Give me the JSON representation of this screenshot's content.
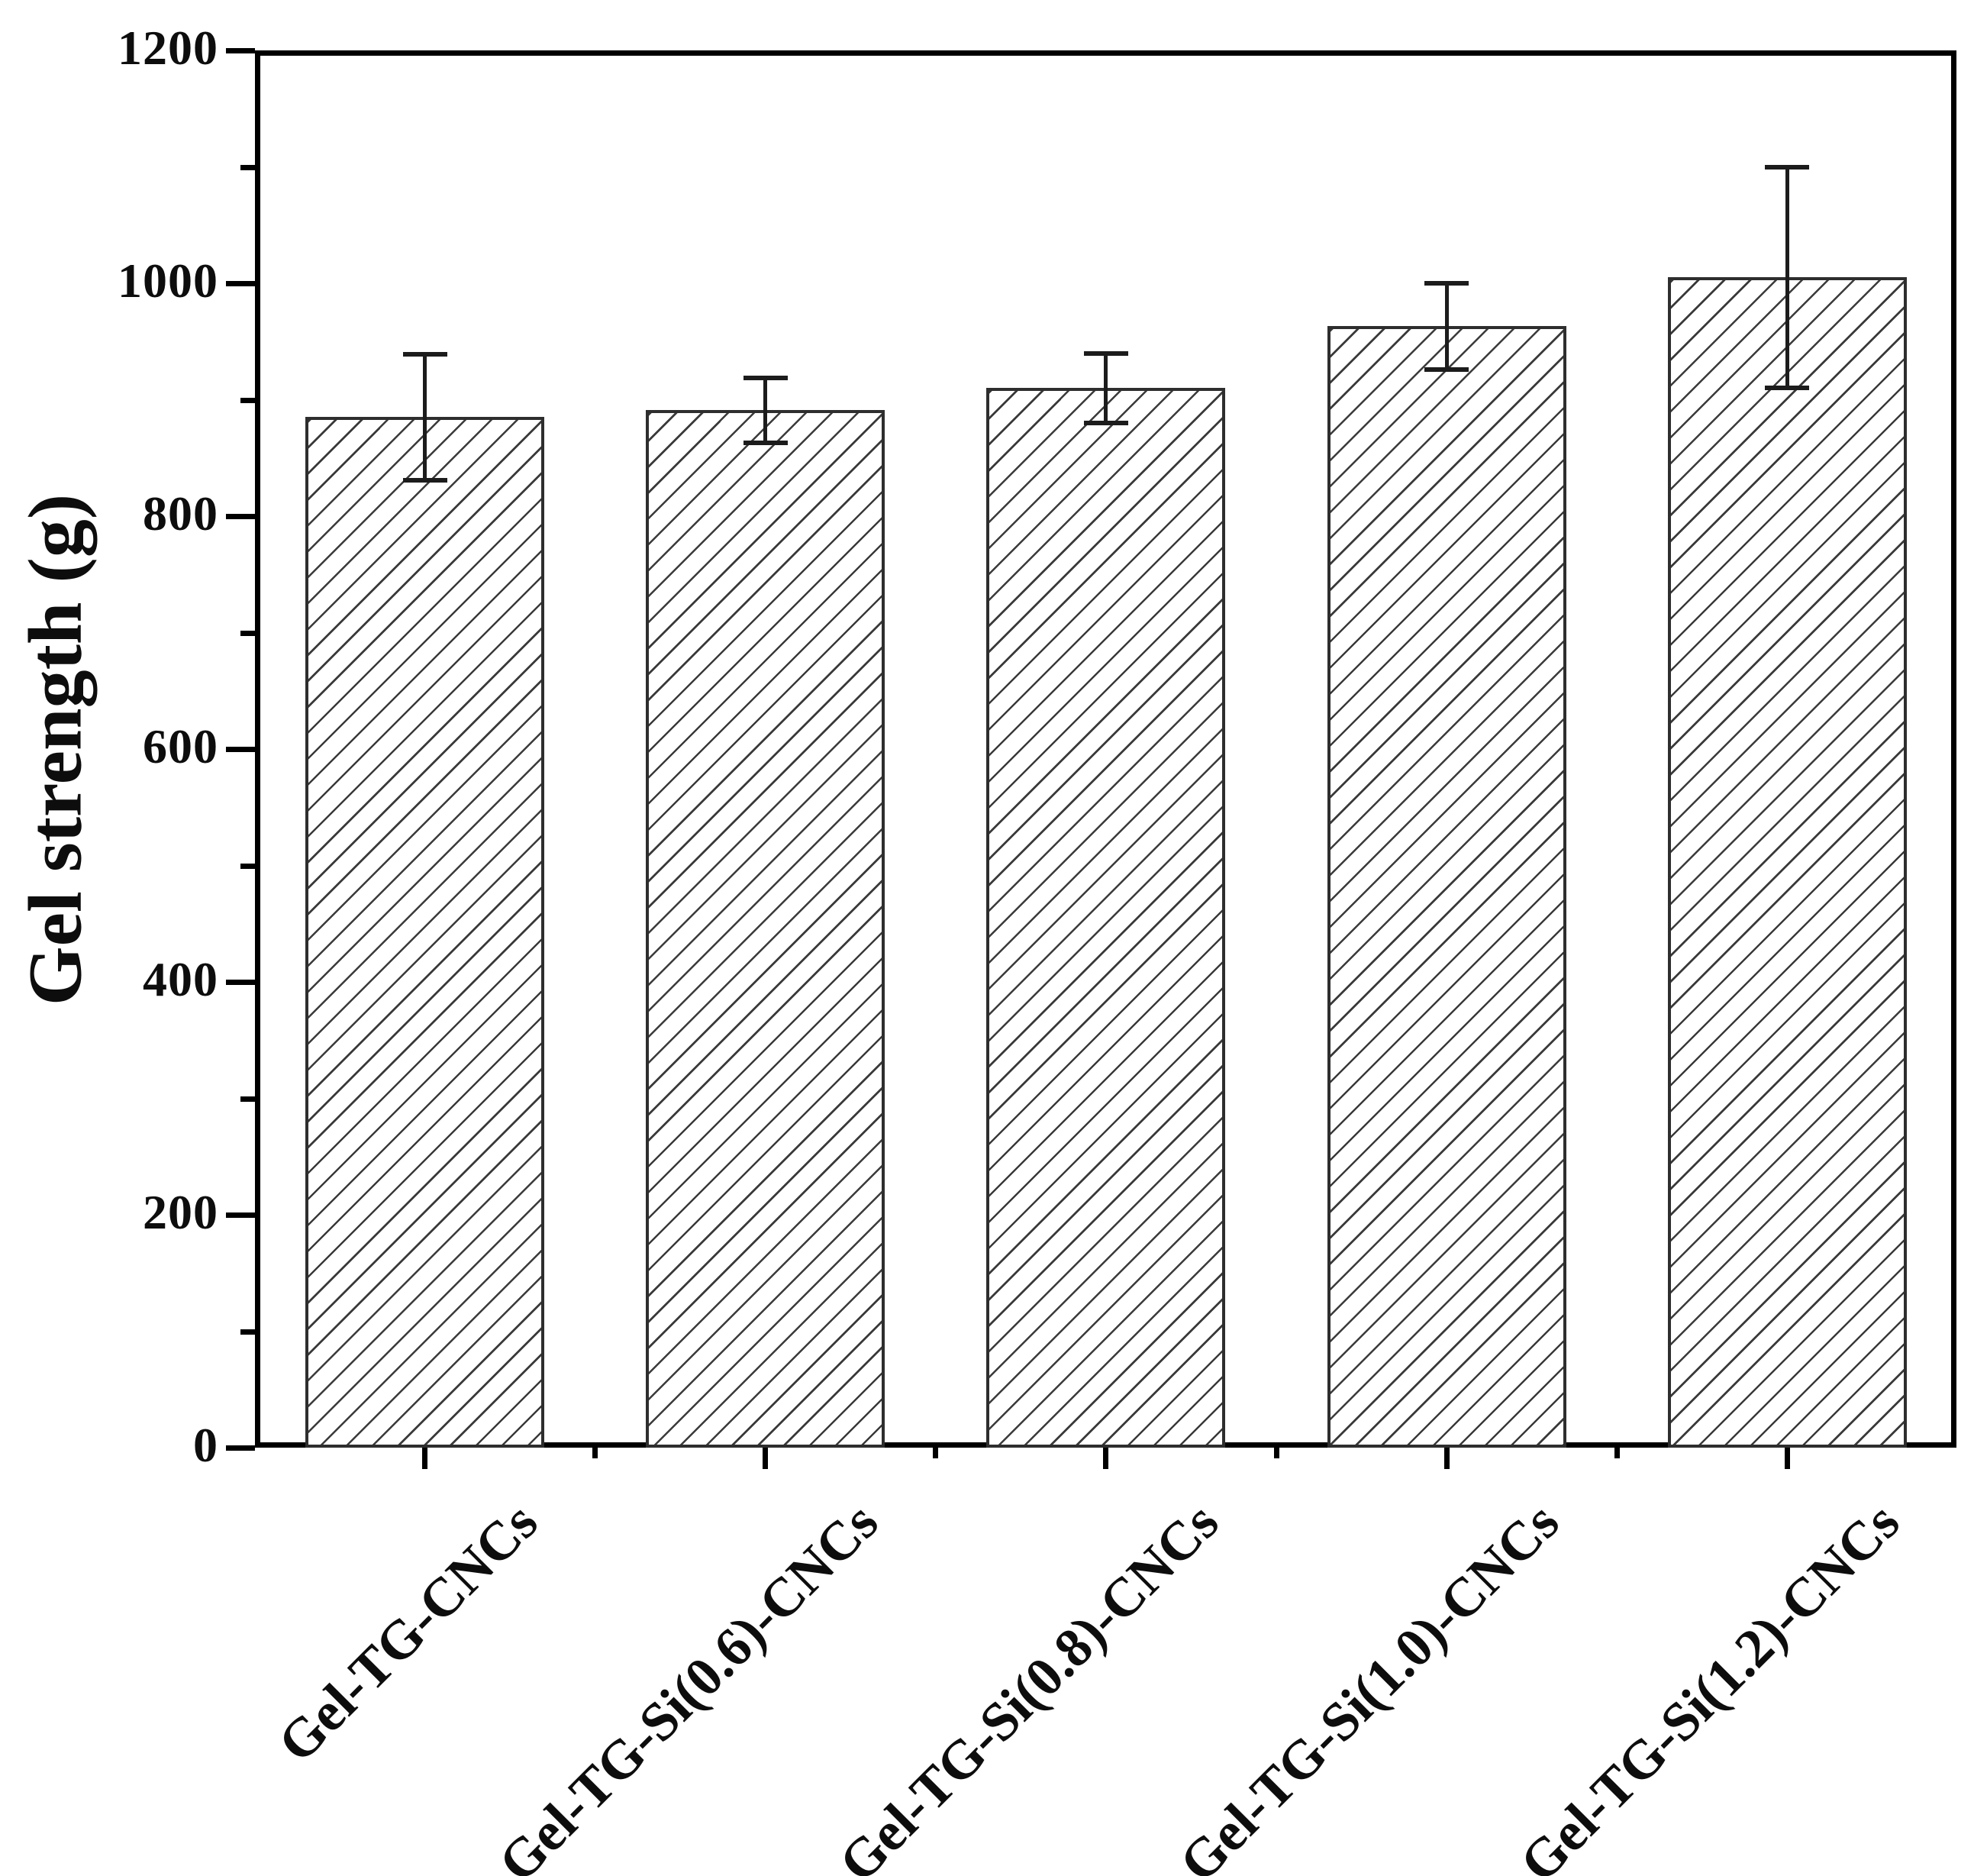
{
  "chart_data": {
    "type": "bar",
    "title": "",
    "xlabel": "",
    "ylabel": "Gel strength (g)",
    "categories": [
      "Gel-TG-CNCs",
      "Gel-TG-Si(0.6)-CNCs",
      "Gel-TG-Si(0.8)-CNCs",
      "Gel-TG-Si(1.0)-CNCs",
      "Gel-TG-Si(1.2)-CNCs"
    ],
    "values": [
      885,
      891,
      910,
      963,
      1005
    ],
    "errors": [
      54,
      28,
      30,
      37,
      95
    ],
    "ylim": [
      0,
      1200
    ],
    "y_major_ticks": [
      0,
      200,
      400,
      600,
      800,
      1000,
      1200
    ],
    "y_minor_ticks": [
      100,
      300,
      500,
      700,
      900,
      1100
    ],
    "grid": "off",
    "legend": "none",
    "bar_fill": "#ffffff",
    "bar_hatch": "/",
    "hatch_color": "#3a3a3a",
    "bar_border_color": "#2e2e2e",
    "error_bar_color": "#1c1c1c",
    "axis_color": "#000000",
    "text_color": "#0d0d0d"
  }
}
